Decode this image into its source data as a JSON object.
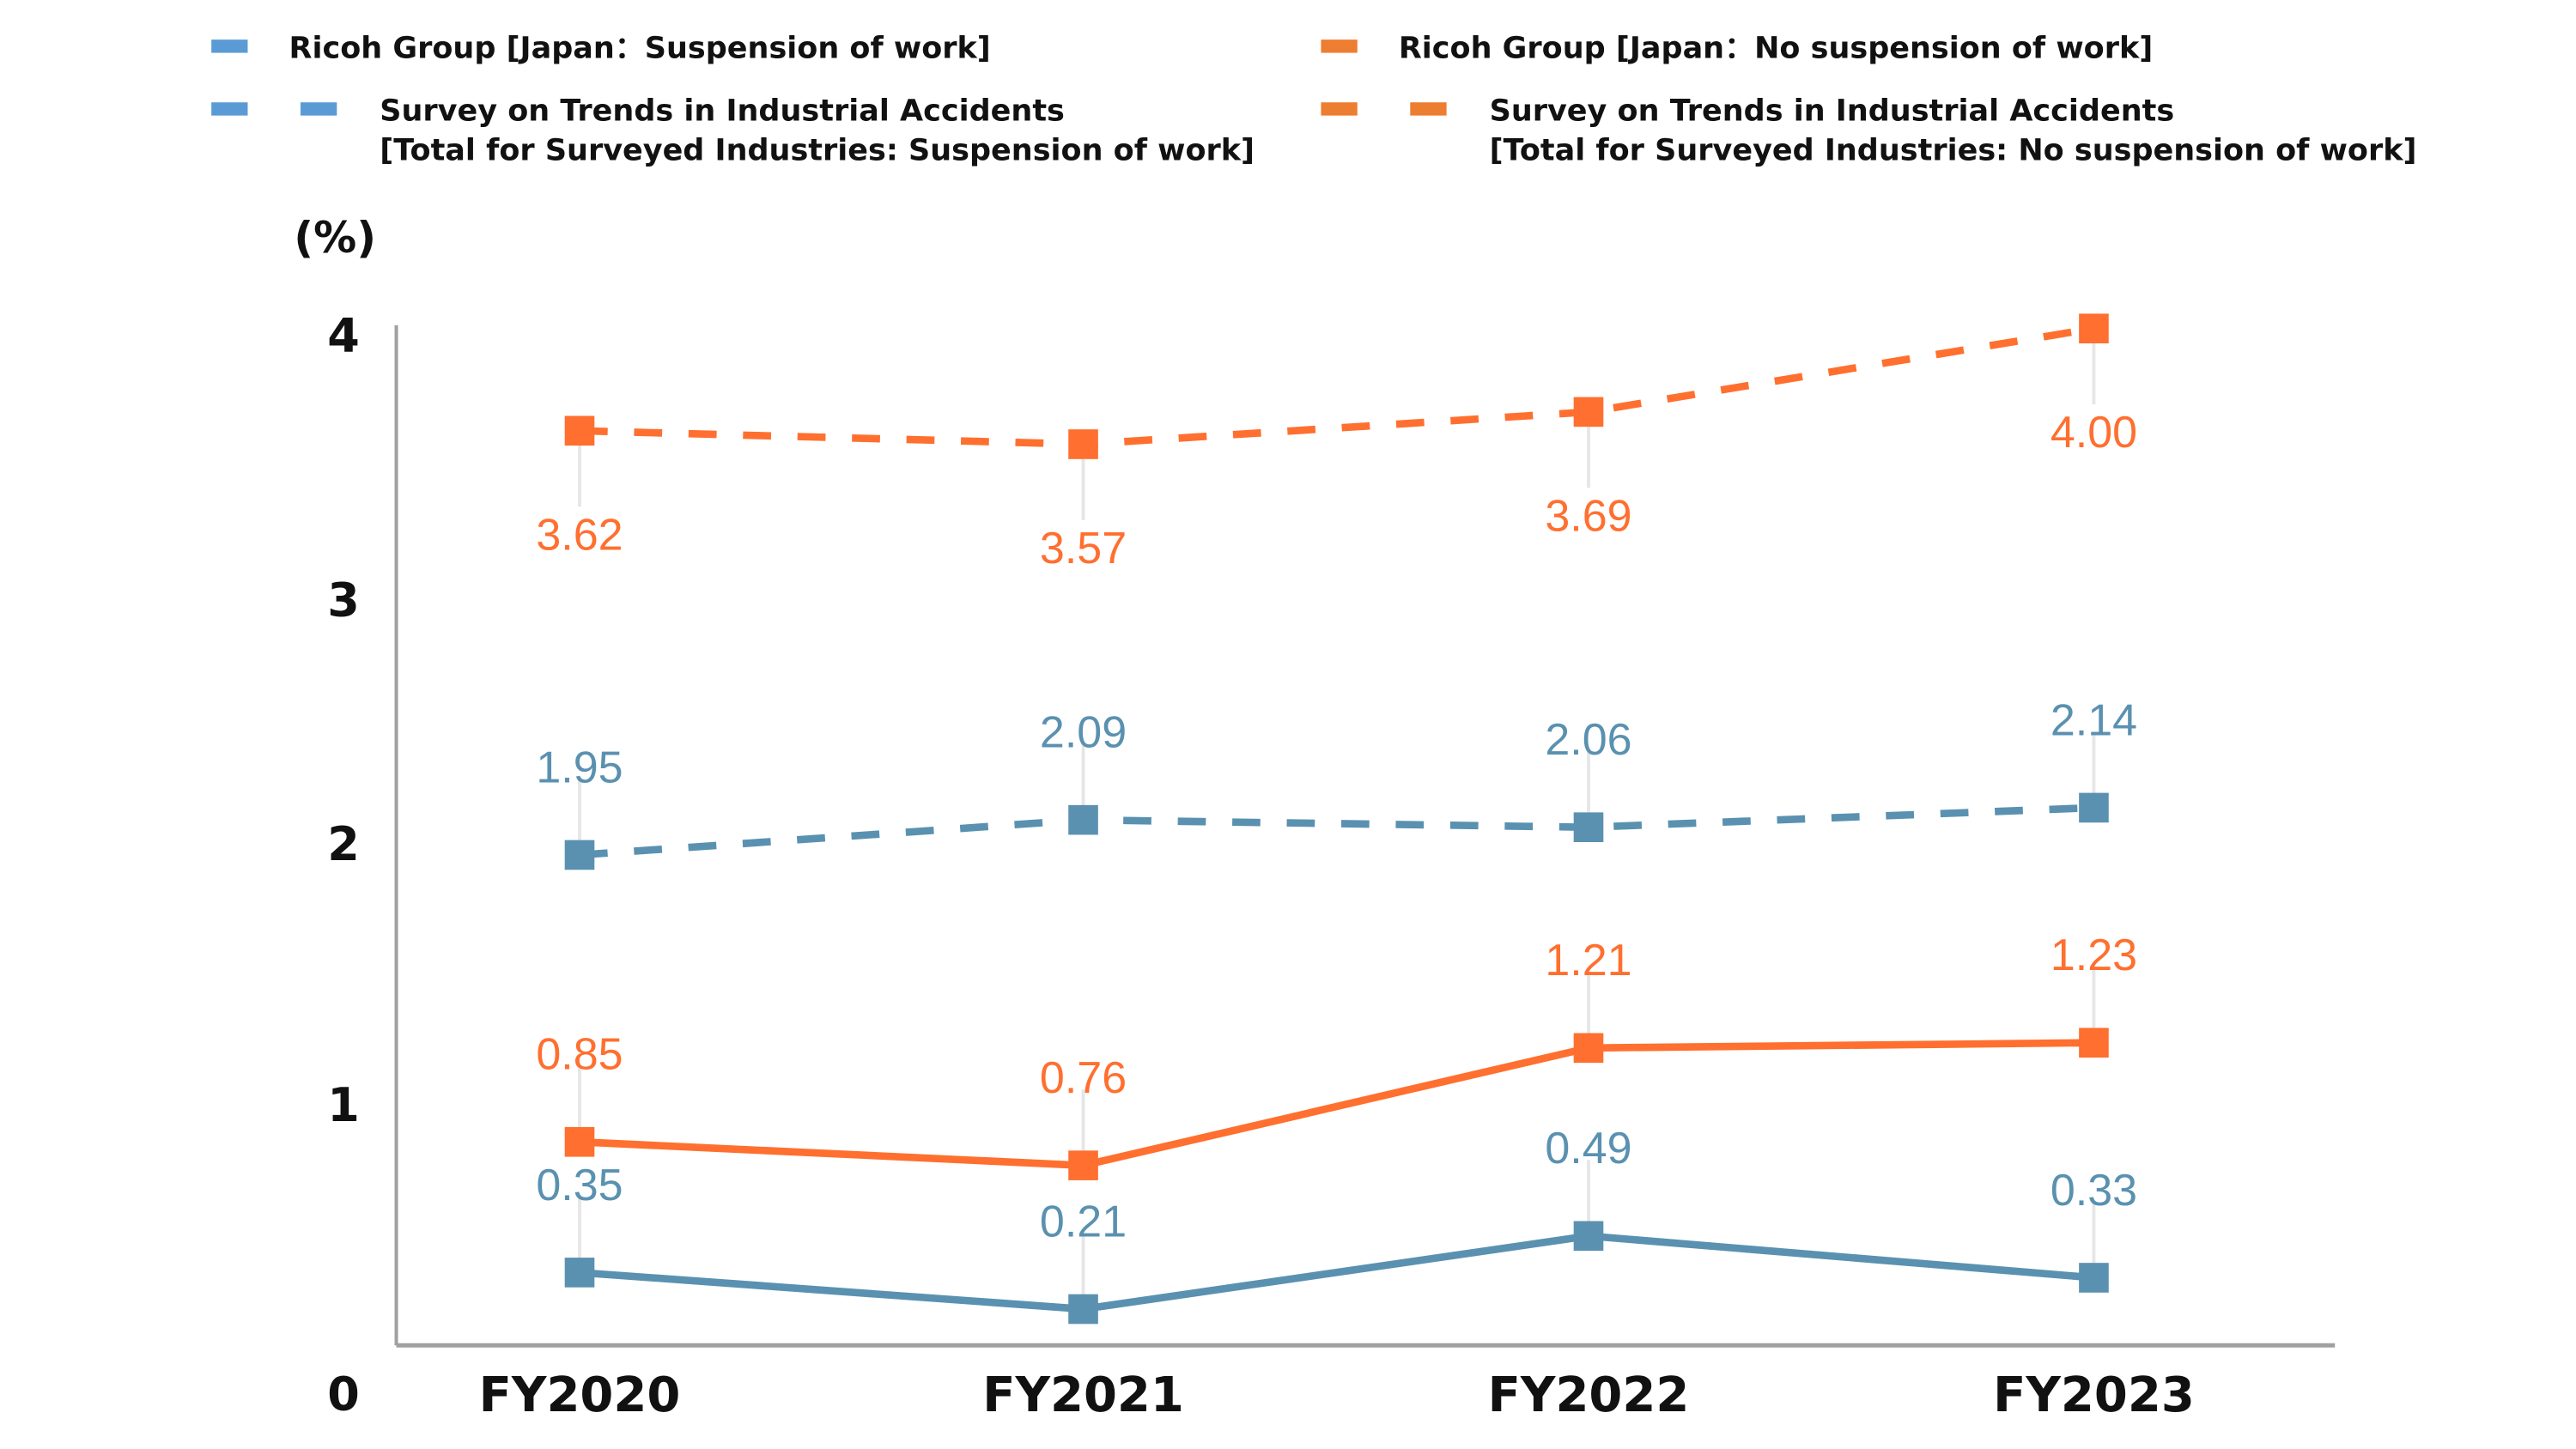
{
  "chart_data": {
    "type": "line",
    "title": "",
    "ylabel": "(%)",
    "xlabel": "",
    "ylim": [
      0,
      4
    ],
    "yticks": [
      "0",
      "1",
      "2",
      "3",
      "4"
    ],
    "grid": false,
    "legend_position": "top",
    "categories": [
      "FY2020",
      "FY2021",
      "FY2022",
      "FY2023"
    ],
    "series": [
      {
        "name": "Survey on Trends in Industrial Accidents [Total for Surveyed Industries: No suspension of work]",
        "legend_lines": [
          "Survey on Trends in Industrial Accidents",
          "[Total for Surveyed Industries: No suspension of work]"
        ],
        "values": [
          3.62,
          3.57,
          3.69,
          4.0
        ],
        "labels": [
          "3.62",
          "3.57",
          "3.69",
          "4.00"
        ],
        "color": "#FF6F2F",
        "legend_color": "#ED7D31",
        "dashed": true,
        "label_position": "below"
      },
      {
        "name": "Survey on Trends in Industrial Accidents [Total for Surveyed Industries: Suspension of work]",
        "legend_lines": [
          "Survey on Trends in Industrial Accidents",
          "[Total for Surveyed Industries: Suspension of work]"
        ],
        "values": [
          1.95,
          2.09,
          2.06,
          2.14
        ],
        "labels": [
          "1.95",
          "2.09",
          "2.06",
          "2.14"
        ],
        "color": "#5A91B0",
        "legend_color": "#5B9BD5",
        "dashed": true,
        "label_position": "above"
      },
      {
        "name": "Ricoh Group [Japan：No suspension of work]",
        "legend_lines": [
          "Ricoh Group [Japan：No suspension of work]"
        ],
        "values": [
          0.85,
          0.76,
          1.21,
          1.23
        ],
        "labels": [
          "0.85",
          "0.76",
          "1.21",
          "1.23"
        ],
        "color": "#FF6F2F",
        "legend_color": "#ED7D31",
        "dashed": false,
        "label_position": "above"
      },
      {
        "name": "Ricoh Group [Japan：Suspension of work]",
        "legend_lines": [
          "Ricoh Group [Japan：Suspension of work]"
        ],
        "values": [
          0.35,
          0.21,
          0.49,
          0.33
        ],
        "labels": [
          "0.35",
          "0.21",
          "0.49",
          "0.33"
        ],
        "color": "#5A91B0",
        "legend_color": "#5B9BD5",
        "dashed": false,
        "label_position": "above"
      }
    ],
    "legend_order": [
      3,
      2,
      1,
      0
    ]
  }
}
